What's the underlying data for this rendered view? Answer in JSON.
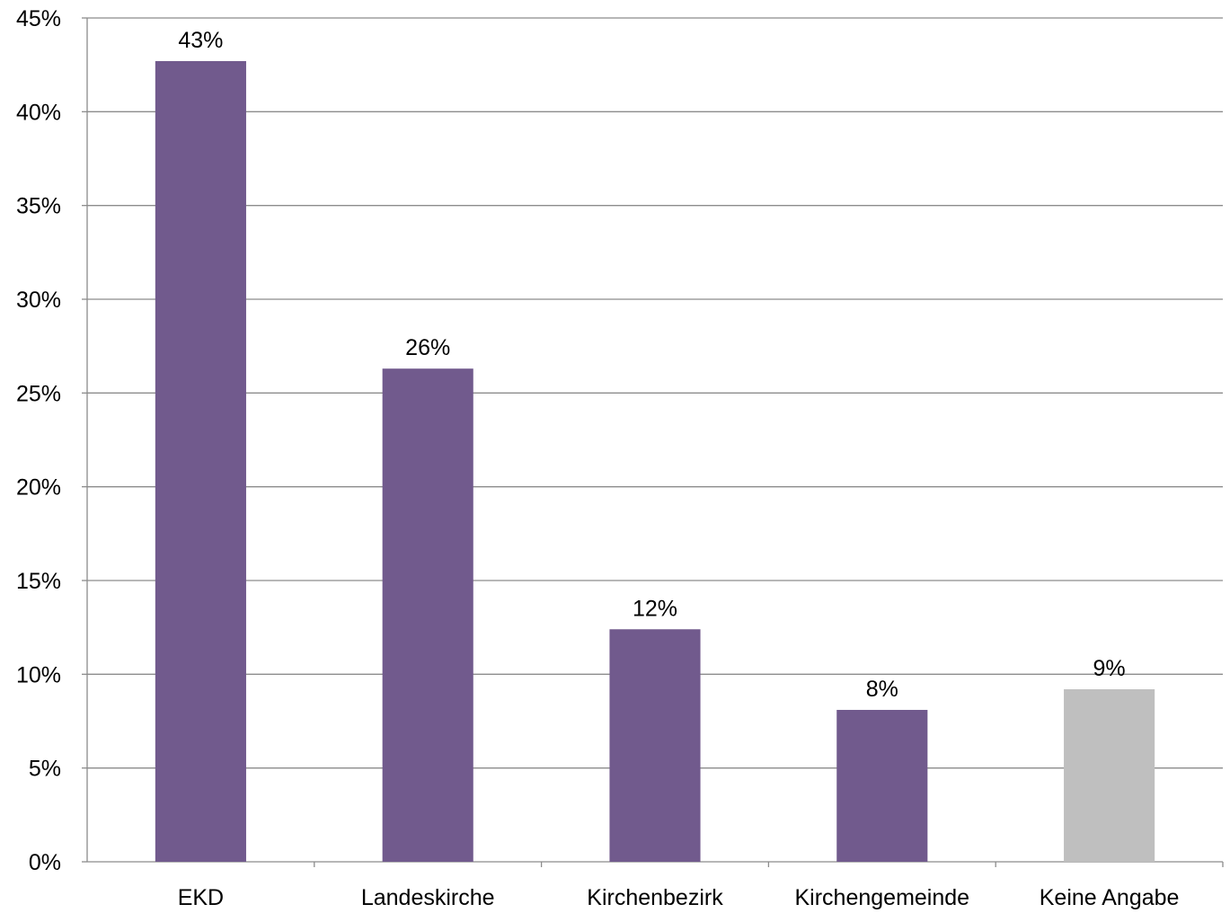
{
  "chart_data": {
    "type": "bar",
    "title": "",
    "xlabel": "",
    "ylabel": "",
    "categories": [
      "EKD",
      "Landeskirche",
      "Kirchenbezirk",
      "Kirchengemeinde",
      "Keine Angabe"
    ],
    "values": [
      42.7,
      26.3,
      12.4,
      8.1,
      9.2
    ],
    "data_labels": [
      "43%",
      "26%",
      "12%",
      "8%",
      "9%"
    ],
    "bar_colors": [
      "#715a8d",
      "#715a8d",
      "#715a8d",
      "#715a8d",
      "#bfbfbf"
    ],
    "ylim": [
      0,
      45
    ],
    "yticks": [
      0,
      5,
      10,
      15,
      20,
      25,
      30,
      35,
      40,
      45
    ],
    "ytick_labels": [
      "0%",
      "5%",
      "10%",
      "15%",
      "20%",
      "25%",
      "30%",
      "35%",
      "40%",
      "45%"
    ],
    "grid": true,
    "gridline_color": "#8c8c8c",
    "legend": "none"
  }
}
